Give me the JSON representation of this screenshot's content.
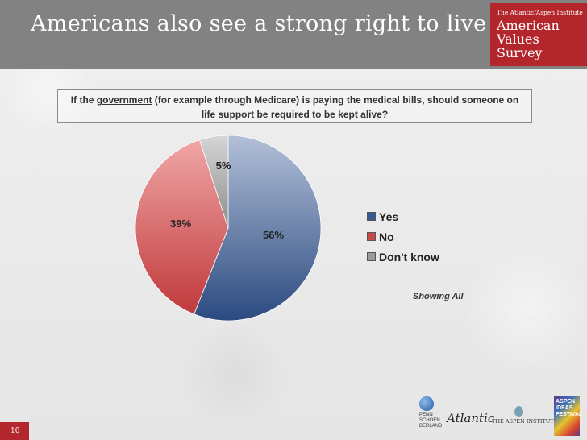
{
  "header": {
    "title": "Americans also see a strong right to live",
    "badge_small": "The Atlantic/Aspen Institute",
    "badge_line1": "American",
    "badge_line2": "Values",
    "badge_line3": "Survey"
  },
  "question": {
    "part1": "If the ",
    "underlined": "government",
    "part2": " (for example through Medicare) is paying the medical bills, should someone on life support be required to be kept alive?"
  },
  "chart_data": {
    "type": "pie",
    "title": "If the government (for example through Medicare) is paying the medical bills, should someone on life support be required to be kept alive?",
    "categories": [
      "Yes",
      "No",
      "Don't know"
    ],
    "values": [
      56,
      39,
      5
    ],
    "labels": [
      "56%",
      "39%",
      "5%"
    ],
    "colors": [
      "#2b4a80",
      "#c0393b",
      "#8c8c8c"
    ],
    "light_colors": [
      "#b3c0d8",
      "#f0a6a6",
      "#d6d6d6"
    ],
    "legend_position": "right"
  },
  "legend": {
    "yes": "Yes",
    "no": "No",
    "dont_know": "Don't know"
  },
  "note": "Showing All",
  "page_number": "10",
  "logos": {
    "psb": "PENN SCHOEN BERLAND",
    "atlantic": "Atlantic",
    "aspen": "THE ASPEN INSTITUTE",
    "festival": "ASPEN IDEAS FESTIVAL"
  }
}
